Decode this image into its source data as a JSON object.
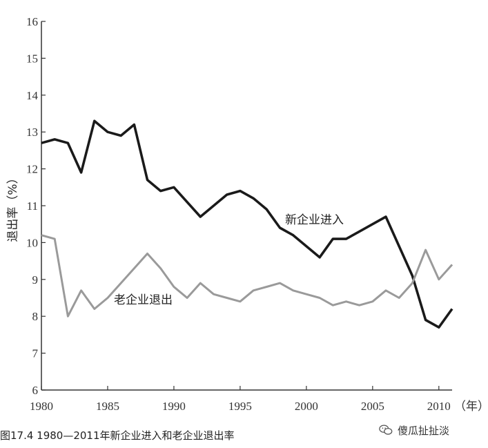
{
  "chart_data": {
    "type": "line",
    "title": "",
    "xlabel": "",
    "x_unit_label": "（年）",
    "ylabel": "退出率（%）",
    "xlim": [
      1980,
      2011
    ],
    "ylim": [
      6,
      16
    ],
    "x_ticks": [
      "1980",
      "1985",
      "1990",
      "1995",
      "2000",
      "2005",
      "2010"
    ],
    "y_ticks": [
      "6",
      "7",
      "8",
      "9",
      "10",
      "11",
      "12",
      "13",
      "14",
      "15",
      "16"
    ],
    "x": [
      1980,
      1981,
      1982,
      1983,
      1984,
      1985,
      1986,
      1987,
      1988,
      1989,
      1990,
      1991,
      1992,
      1993,
      1994,
      1995,
      1996,
      1997,
      1998,
      1999,
      2000,
      2001,
      2002,
      2003,
      2004,
      2005,
      2006,
      2007,
      2008,
      2009,
      2010,
      2011
    ],
    "series": [
      {
        "name": "新企业进入",
        "color": "#1a1a1a",
        "values": [
          12.7,
          12.8,
          12.7,
          11.9,
          13.3,
          13.0,
          12.9,
          13.2,
          11.7,
          11.4,
          11.5,
          11.1,
          10.7,
          11.0,
          11.3,
          11.4,
          11.2,
          10.9,
          10.4,
          10.2,
          9.9,
          9.6,
          10.1,
          10.1,
          10.3,
          10.5,
          10.7,
          9.9,
          9.1,
          7.9,
          7.7,
          8.2
        ]
      },
      {
        "name": "老企业退出",
        "color": "#9a9a9a",
        "values": [
          10.2,
          10.1,
          8.0,
          8.7,
          8.2,
          8.5,
          8.9,
          9.3,
          9.7,
          9.3,
          8.8,
          8.5,
          8.9,
          8.6,
          8.5,
          8.4,
          8.7,
          8.8,
          8.9,
          8.7,
          8.6,
          8.5,
          8.3,
          8.4,
          8.3,
          8.4,
          8.7,
          8.5,
          8.9,
          9.8,
          9.0,
          9.4
        ]
      }
    ]
  },
  "caption": "图17.4   1980—2011年新企业进入和老企业退出率",
  "watermark": "傻瓜扯扯淡"
}
